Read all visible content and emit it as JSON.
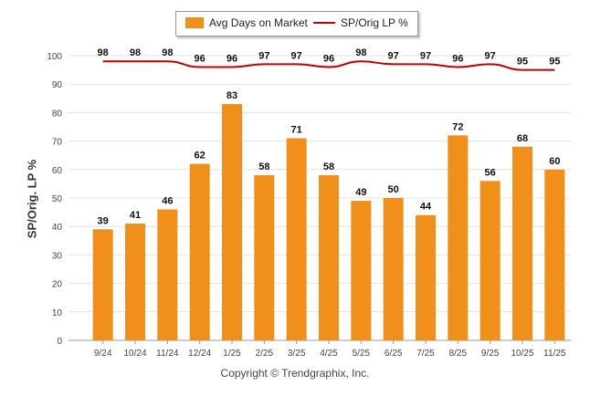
{
  "chart_data": {
    "type": "bar",
    "categories": [
      "9/24",
      "10/24",
      "11/24",
      "12/24",
      "1/25",
      "2/25",
      "3/25",
      "4/25",
      "5/25",
      "6/25",
      "7/25",
      "8/25",
      "9/25",
      "10/25",
      "11/25"
    ],
    "series": [
      {
        "name": "Avg Days on Market",
        "type": "bar",
        "color": "#f0901a",
        "values": [
          39,
          41,
          46,
          62,
          83,
          58,
          71,
          58,
          49,
          50,
          44,
          72,
          56,
          68,
          60
        ]
      },
      {
        "name": "SP/Orig LP %",
        "type": "line",
        "color": "#c00000",
        "values": [
          98,
          98,
          98,
          96,
          96,
          97,
          97,
          96,
          98,
          97,
          97,
          96,
          97,
          95,
          95
        ]
      }
    ],
    "ylabel": "SP/Orig. LP %",
    "ylim": [
      0,
      100
    ],
    "yticks": [
      0,
      10,
      20,
      30,
      40,
      50,
      60,
      70,
      80,
      90,
      100
    ],
    "grid": true,
    "legend_position": "top-center"
  },
  "footer": {
    "copyright": "Copyright © Trendgraphix, Inc."
  }
}
